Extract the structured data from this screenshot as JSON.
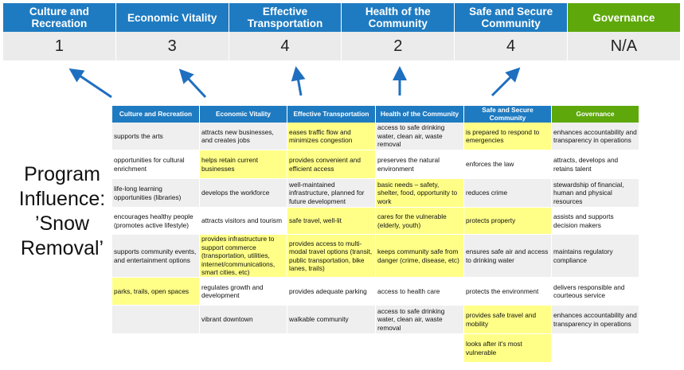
{
  "colors": {
    "blue": "#1f7bc1",
    "green": "#5ea80c",
    "highlight": "#ffff88",
    "stripe": "#efefef",
    "arrow": "#1f6fc0"
  },
  "top": {
    "headers": [
      "Culture and Recreation",
      "Economic Vitality",
      "Effective Transportation",
      "Health of the Community",
      "Safe and Secure Community",
      "Governance"
    ],
    "scores": [
      "1",
      "3",
      "4",
      "2",
      "4",
      "N/A"
    ]
  },
  "side_title": "Program Influence: ’Snow Removal’",
  "table": {
    "headers": [
      "Culture and Recreation",
      "Economic Vitality",
      "Effective Transportation",
      "Health of the Community",
      "Safe and Secure Community",
      "Governance"
    ],
    "rows": [
      [
        "supports the arts",
        "attracts new businesses, and creates jobs",
        "eases traffic flow and minimizes congestion",
        "access to safe drinking water, clean air, waste removal",
        "is prepared to respond to emergencies",
        "enhances accountability and transparency in operations"
      ],
      [
        "opportunities for cultural enrichment",
        "helps retain current businesses",
        "provides convenient and efficient access",
        "preserves the natural environment",
        "enforces the law",
        "attracts, develops and retains talent"
      ],
      [
        "life-long learning opportunities (libraries)",
        "develops the workforce",
        "well-maintained infrastructure, planned for future development",
        "basic needs – safety, shelter, food, opportunity to work",
        "reduces crime",
        "stewardship of financial, human and physical resources"
      ],
      [
        "encourages healthy people (promotes active lifestyle)",
        "attracts visitors and tourism",
        "safe travel, well-lit",
        "cares for the vulnerable (elderly, youth)",
        "protects property",
        "assists and supports decision makers"
      ],
      [
        "supports community events, and entertainment options",
        "provides infrastructure to support commerce (transportation, utilities, internet/communications, smart cities, etc)",
        "provides access to multi-modal travel options (transit, public transportation, bike lanes, trails)",
        "keeps community safe from danger (crime, disease, etc)",
        "ensures safe air and access to drinking water",
        "maintains regulatory compliance"
      ],
      [
        "parks, trails, open spaces",
        "regulates growth and development",
        "provides adequate parking",
        "access to health care",
        "protects the environment",
        "delivers responsible and courteous service"
      ],
      [
        "",
        "vibrant downtown",
        "walkable community",
        "access to safe drinking water, clean air, waste removal",
        "provides safe travel and mobility",
        "enhances accountability and transparency in operations"
      ],
      [
        "",
        "",
        "",
        "",
        "looks after it's most vulnerable",
        ""
      ]
    ],
    "highlighted": [
      [
        2,
        4
      ],
      [
        1,
        2
      ],
      [
        3
      ],
      [
        2,
        3,
        4
      ],
      [
        1,
        2,
        3
      ],
      [
        0
      ],
      [
        4
      ],
      [
        4
      ]
    ]
  }
}
